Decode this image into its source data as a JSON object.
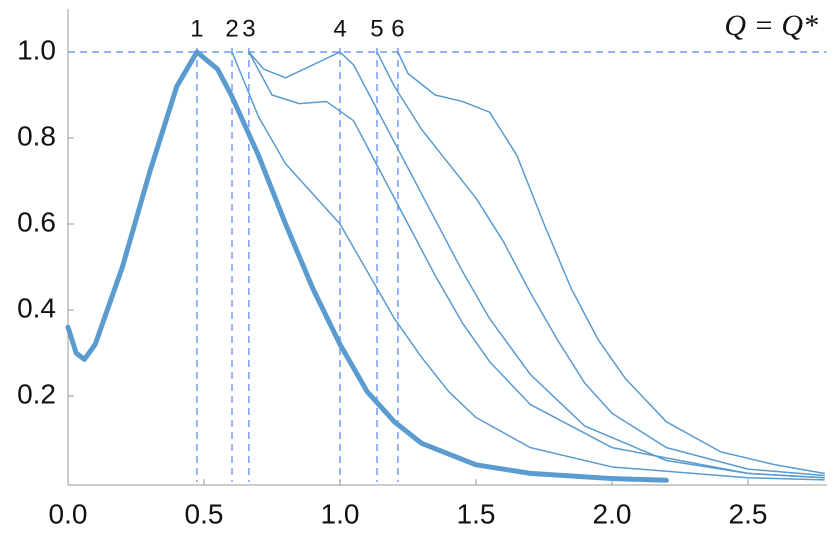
{
  "chart_data": {
    "type": "line",
    "annotation": "Q = Q*",
    "xlim": [
      0,
      2.79
    ],
    "ylim": [
      0,
      1.1
    ],
    "xticks": [
      {
        "value": 0,
        "label": "0.0"
      },
      0.5,
      {
        "value": 1,
        "label": "1.0"
      },
      1.5,
      {
        "value": 2,
        "label": "2.0"
      },
      2.5
    ],
    "yticks": [
      0.2,
      0.4,
      0.6,
      0.8,
      {
        "value": 1,
        "label": "1.0"
      }
    ],
    "hlines": [
      1
    ],
    "vlines": [
      {
        "x": 0.474,
        "label": "1"
      },
      {
        "x": 0.603,
        "label": "2"
      },
      {
        "x": 0.665,
        "label": "3"
      },
      {
        "x": 1.0,
        "label": "4"
      },
      {
        "x": 1.136,
        "label": "5"
      },
      {
        "x": 1.213,
        "label": "6"
      }
    ],
    "series": [
      {
        "color": "#5a9bd0",
        "linewidth": 5,
        "x": [
          0,
          0.03,
          0.06,
          0.1,
          0.2,
          0.3,
          0.4,
          0.474,
          0.55,
          0.6,
          0.7,
          0.8,
          0.9,
          1.0,
          1.1,
          1.2,
          1.3,
          1.5,
          1.7,
          2.0,
          2.2
        ],
        "values": [
          0.36,
          0.3,
          0.285,
          0.32,
          0.5,
          0.72,
          0.92,
          1.0,
          0.96,
          0.9,
          0.76,
          0.6,
          0.45,
          0.32,
          0.21,
          0.14,
          0.09,
          0.04,
          0.02,
          0.008,
          0.004
        ]
      },
      {
        "color": "#5a9bd0",
        "linewidth": 1.5,
        "x": [
          0.603,
          0.7,
          0.8,
          0.9,
          1.0,
          1.1,
          1.2,
          1.3,
          1.4,
          1.5,
          1.7,
          2.0,
          2.5,
          2.78
        ],
        "values": [
          1.0,
          0.85,
          0.74,
          0.67,
          0.6,
          0.49,
          0.38,
          0.29,
          0.21,
          0.15,
          0.08,
          0.035,
          0.01,
          0.005
        ]
      },
      {
        "color": "#5a9bd0",
        "linewidth": 1.5,
        "x": [
          0.665,
          0.75,
          0.85,
          0.95,
          1.05,
          1.15,
          1.25,
          1.35,
          1.45,
          1.55,
          1.7,
          2.0,
          2.5,
          2.78
        ],
        "values": [
          1.0,
          0.9,
          0.88,
          0.885,
          0.84,
          0.72,
          0.6,
          0.48,
          0.37,
          0.28,
          0.18,
          0.08,
          0.02,
          0.01
        ]
      },
      {
        "color": "#5a9bd0",
        "linewidth": 1.5,
        "x": [
          0.665,
          0.72,
          0.8,
          0.9,
          1.0,
          1.05,
          1.15,
          1.25,
          1.35,
          1.45,
          1.55,
          1.7,
          1.9,
          2.2,
          2.5,
          2.78
        ],
        "values": [
          1.0,
          0.96,
          0.94,
          0.97,
          1.0,
          0.97,
          0.85,
          0.73,
          0.61,
          0.49,
          0.38,
          0.25,
          0.13,
          0.05,
          0.02,
          0.01
        ]
      },
      {
        "color": "#5a9bd0",
        "linewidth": 1.5,
        "x": [
          1.136,
          1.2,
          1.3,
          1.4,
          1.5,
          1.6,
          1.7,
          1.8,
          1.9,
          2.0,
          2.2,
          2.5,
          2.78
        ],
        "values": [
          1.0,
          0.92,
          0.82,
          0.74,
          0.66,
          0.56,
          0.44,
          0.33,
          0.23,
          0.16,
          0.08,
          0.03,
          0.015
        ]
      },
      {
        "color": "#5a9bd0",
        "linewidth": 1.5,
        "x": [
          1.213,
          1.25,
          1.35,
          1.45,
          1.55,
          1.65,
          1.75,
          1.85,
          1.95,
          2.05,
          2.2,
          2.4,
          2.6,
          2.78
        ],
        "values": [
          1.0,
          0.95,
          0.9,
          0.885,
          0.86,
          0.76,
          0.6,
          0.45,
          0.33,
          0.24,
          0.14,
          0.07,
          0.04,
          0.02
        ]
      }
    ]
  }
}
